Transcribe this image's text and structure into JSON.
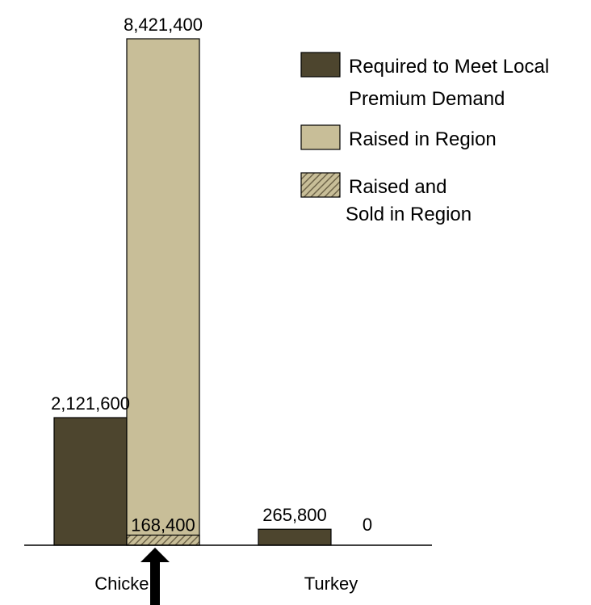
{
  "chart_data": {
    "type": "bar",
    "categories": [
      "Chicken",
      "Turkey"
    ],
    "series": [
      {
        "name": "Required to Meet Local Premium Demand",
        "values": [
          2121600,
          265800
        ],
        "labels": [
          "2,121,600",
          "265,800"
        ],
        "color": "#4d452e"
      },
      {
        "name": "Raised in Region",
        "values": [
          8421400,
          0
        ],
        "labels": [
          "8,421,400",
          "0"
        ],
        "color": "#c8be98"
      },
      {
        "name": "Raised and Sold in Region",
        "values": [
          168400,
          null
        ],
        "labels": [
          "168,400",
          ""
        ],
        "color": "#c8be98",
        "pattern": "diagonal-hatch"
      }
    ],
    "legend": {
      "position": "top-right",
      "entries": [
        {
          "lines": [
            "Required to Meet Local",
            "Premium Demand"
          ]
        },
        {
          "lines": [
            "Raised in Region"
          ]
        },
        {
          "lines": [
            "Raised and",
            "Sold in Region"
          ]
        }
      ]
    },
    "annotations": [
      {
        "type": "arrow",
        "direction": "up",
        "target": "Raised and Sold in Region"
      }
    ],
    "ylim": [
      0,
      8421400
    ],
    "grid": false
  }
}
